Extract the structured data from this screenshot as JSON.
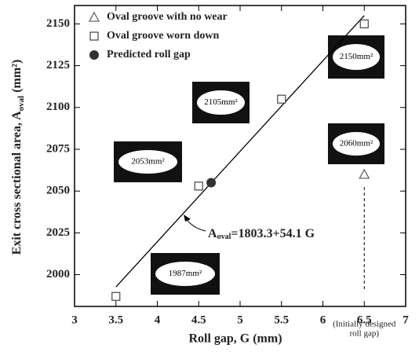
{
  "chart_data": {
    "type": "scatter",
    "xlabel": "Roll gap, G (mm)",
    "ylabel": {
      "text": "Exit cross sectional area, A",
      "subscript": "oval",
      "suffix": " (mm²)"
    },
    "xlim": [
      3,
      7
    ],
    "ylim": [
      1981,
      2161
    ],
    "xticks": [
      3,
      3.5,
      4,
      4.5,
      5,
      5.5,
      6,
      6.5,
      7
    ],
    "yticks": [
      2000,
      2025,
      2050,
      2075,
      2100,
      2125,
      2150
    ],
    "series": [
      {
        "name": "Oval groove with no wear",
        "marker": "triangle",
        "color": "#666666",
        "x": [
          6.5
        ],
        "values": [
          2060
        ]
      },
      {
        "name": "Oval groove worn down",
        "marker": "square",
        "color": "#444444",
        "x": [
          3.5,
          4.5,
          5.5,
          6.5
        ],
        "values": [
          1987,
          2053,
          2105,
          2150
        ]
      },
      {
        "name": "Predicted roll gap",
        "marker": "circle",
        "color": "#333333",
        "x": [
          4.65
        ],
        "values": [
          2055
        ]
      }
    ],
    "fit": {
      "color": "#000000",
      "x": [
        3.5,
        6.5
      ],
      "values": [
        1992.65,
        2154.95
      ]
    },
    "equation": {
      "text": "A",
      "subscript": "oval",
      "suffix": "=1803.3+54.1 G"
    },
    "insets": [
      "2150mm²",
      "2105mm²",
      "2053mm²",
      "2060mm²",
      "1987mm²"
    ],
    "note": [
      "(Initially designed",
      "roll gap)"
    ]
  }
}
